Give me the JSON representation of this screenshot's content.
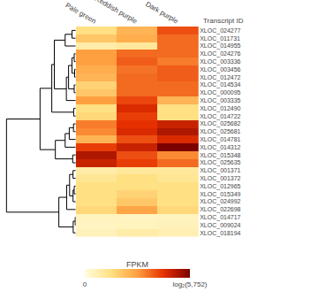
{
  "chart_data": {
    "type": "heatmap",
    "columns": [
      "Pale green",
      "Reddish purple",
      "Dark purple"
    ],
    "row_header": "Transcript ID",
    "rows": [
      "XLOC_024277",
      "XLOC_011731",
      "XLOC_014955",
      "XLOC_024276",
      "XLOC_003336",
      "XLOC_003456",
      "XLOC_012472",
      "XLOC_014534",
      "XLOC_000095",
      "XLOC_003335",
      "XLOC_012490",
      "XLOC_014722",
      "XLOC_025682",
      "XLOC_025681",
      "XLOC_014781",
      "XLOC_014312",
      "XLOC_015348",
      "XLOC_025635",
      "XLOC_001371",
      "XLOC_001372",
      "XLOC_012965",
      "XLOC_015349",
      "XLOC_024992",
      "XLOC_022698",
      "XLOC_014717",
      "XLOC_009024",
      "XLOC_018194"
    ],
    "cells": [
      [
        0.25,
        0.42,
        0.68
      ],
      [
        0.35,
        0.45,
        0.62
      ],
      [
        0.15,
        0.18,
        0.62
      ],
      [
        0.5,
        0.62,
        0.62
      ],
      [
        0.5,
        0.65,
        0.58
      ],
      [
        0.45,
        0.6,
        0.65
      ],
      [
        0.42,
        0.62,
        0.65
      ],
      [
        0.3,
        0.62,
        0.62
      ],
      [
        0.35,
        0.62,
        0.62
      ],
      [
        0.5,
        0.7,
        0.42
      ],
      [
        0.25,
        0.78,
        0.25
      ],
      [
        0.28,
        0.72,
        0.25
      ],
      [
        0.58,
        0.75,
        0.82
      ],
      [
        0.55,
        0.78,
        0.88
      ],
      [
        0.42,
        0.68,
        0.78
      ],
      [
        0.72,
        0.82,
        1.0
      ],
      [
        0.88,
        0.68,
        0.55
      ],
      [
        0.82,
        0.72,
        0.62
      ],
      [
        0.15,
        0.18,
        0.18
      ],
      [
        0.2,
        0.25,
        0.2
      ],
      [
        0.25,
        0.25,
        0.25
      ],
      [
        0.25,
        0.3,
        0.25
      ],
      [
        0.25,
        0.35,
        0.25
      ],
      [
        0.28,
        0.48,
        0.28
      ],
      [
        0.09,
        0.08,
        0.09
      ],
      [
        0.08,
        0.09,
        0.1
      ],
      [
        0.1,
        0.15,
        0.12
      ]
    ],
    "colors": [
      "#FFFDE0",
      "#FFE082",
      "#FFA040",
      "#E63000",
      "#7B0000"
    ],
    "colorbar": {
      "title": "FPKM",
      "range": [
        0,
        1
      ],
      "ticks": [
        0,
        {
          "value": 1,
          "label": "log₂(5,752)"
        }
      ]
    },
    "color": "#000000",
    "dendrogram": [
      [
        25,
        24,
        0.017
      ],
      [
        6,
        5,
        0.036
      ],
      [
        4,
        3,
        0.05
      ],
      [
        8,
        7,
        0.05
      ],
      [
        21,
        20,
        0.05
      ],
      [
        11,
        10,
        0.067
      ],
      [
        13,
        12,
        0.073
      ],
      [
        26,
        27,
        0.082
      ],
      [
        22,
        31,
        0.087
      ],
      [
        19,
        18,
        0.088
      ],
      [
        17,
        16,
        0.099
      ],
      [
        1,
        0,
        0.12
      ],
      [
        28,
        29,
        0.121
      ],
      [
        35,
        36,
        0.199
      ],
      [
        14,
        33,
        0.21
      ],
      [
        30,
        39,
        0.233
      ],
      [
        23,
        40,
        0.295
      ],
      [
        9,
        42,
        0.304
      ],
      [
        15,
        41,
        0.343
      ],
      [
        2,
        38,
        0.343
      ],
      [
        34,
        43,
        0.548
      ],
      [
        37,
        45,
        0.662
      ],
      [
        44,
        46,
        0.695
      ],
      [
        32,
        49,
        0.778
      ],
      [
        48,
        50,
        1.159
      ],
      [
        47,
        51,
        2.249
      ]
    ]
  }
}
